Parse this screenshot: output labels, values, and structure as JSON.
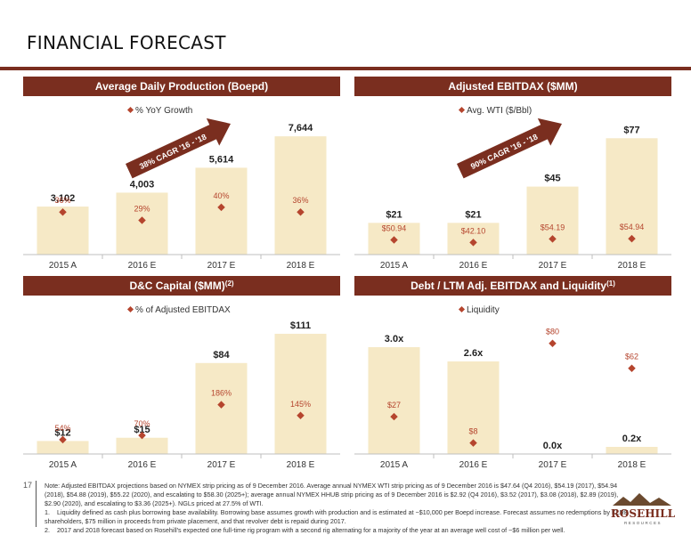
{
  "page": {
    "title": "FINANCIAL FORECAST",
    "page_number": "17"
  },
  "colors": {
    "accent": "#7a2e1f",
    "bar": "#f6e9c6",
    "marker": "#b5452e",
    "axis": "#bfbfbf"
  },
  "chart_data": [
    {
      "type": "bar",
      "title": "Average Daily Production (Boepd)",
      "legend": "% YoY Growth",
      "categories": [
        "2015 A",
        "2016 E",
        "2017 E",
        "2018 E"
      ],
      "values": [
        3102,
        4003,
        5614,
        7644
      ],
      "value_labels": [
        "3,102",
        "4,003",
        "5,614",
        "7,644"
      ],
      "ymax": 8400,
      "overlay": {
        "labels": [
          "36%",
          "29%",
          "40%",
          "36%"
        ],
        "values": [
          0.36,
          0.29,
          0.4,
          0.36
        ],
        "max": 1.1
      },
      "arrow_label": "38% CAGR '16 - '18"
    },
    {
      "type": "bar",
      "title": "Adjusted EBITDAX ($MM)",
      "legend": "Avg. WTI ($/Bbl)",
      "categories": [
        "2015 A",
        "2016 E",
        "2017 E",
        "2018 E"
      ],
      "values": [
        21,
        21,
        45,
        77
      ],
      "value_labels": [
        "$21",
        "$21",
        "$45",
        "$77"
      ],
      "ymax": 86,
      "overlay": {
        "labels": [
          "$50.94",
          "$42.10",
          "$54.19",
          "$54.94"
        ],
        "values": [
          50.94,
          42.1,
          54.19,
          54.94
        ],
        "max": 450
      },
      "arrow_label": "90% CAGR '16 - '18"
    },
    {
      "type": "bar",
      "title": "D&C Capital ($MM)",
      "title_sup": "(2)",
      "legend": "% of Adjusted EBITDAX",
      "categories": [
        "2015 A",
        "2016 E",
        "2017 E",
        "2018 E"
      ],
      "values": [
        12,
        15,
        84,
        111
      ],
      "value_labels": [
        "$12",
        "$15",
        "$84",
        "$111"
      ],
      "ymax": 120,
      "overlay": {
        "labels": [
          "54%",
          "70%",
          "186%",
          "145%"
        ],
        "values": [
          0.54,
          0.7,
          1.86,
          1.45
        ],
        "max": 4.9
      }
    },
    {
      "type": "bar",
      "title": "Debt / LTM Adj. EBITDAX and Liquidity",
      "title_sup": "(1)",
      "legend": "Liquidity",
      "categories": [
        "2015 A",
        "2016 E",
        "2017 E",
        "2018 E"
      ],
      "values": [
        3.0,
        2.6,
        0.0,
        0.2
      ],
      "value_labels": [
        "3.0x",
        "2.6x",
        "0.0x",
        "0.2x"
      ],
      "ymax": 3.65,
      "overlay": {
        "labels": [
          "$27",
          "$8",
          "$80",
          "$62"
        ],
        "values": [
          27,
          8,
          80,
          62
        ],
        "max": 94
      }
    }
  ],
  "footer": {
    "note": "Note: Adjusted EBITDAX projections based on NYMEX strip pricing as of 9 December 2016. Average annual NYMEX WTI strip pricing as of 9 December 2016 is $47.64 (Q4 2016), $54.19 (2017), $54.94 (2018), $54.88 (2019), $55.22 (2020), and escalating to $58.30 (2025+); average annual NYMEX HHUB strip pricing as of 9 December 2016 is $2.92 (Q4 2016), $3.52 (2017), $3.08 (2018), $2.89 (2019), $2.90 (2020), and escalating to $3.36 (2025+). NGLs priced at 27.5% of WTI.",
    "notes": [
      {
        "num": "1.",
        "text": "Liquidity defined as cash plus borrowing base availability. Borrowing base assumes growth with production and is estimated at ~$10,000 per Boepd increase. Forecast assumes no redemptions by KLRE shareholders, $75 million in proceeds from private placement, and that revolver debt is repaid during 2017."
      },
      {
        "num": "2.",
        "text": "2017 and 2018 forecast based on Rosehill's expected one full-time rig program with a second rig alternating for a majority of the year at an average well cost of ~$6 million per well."
      }
    ]
  },
  "logo": {
    "name": "ROSEHILL",
    "sub": "RESOURCES"
  }
}
